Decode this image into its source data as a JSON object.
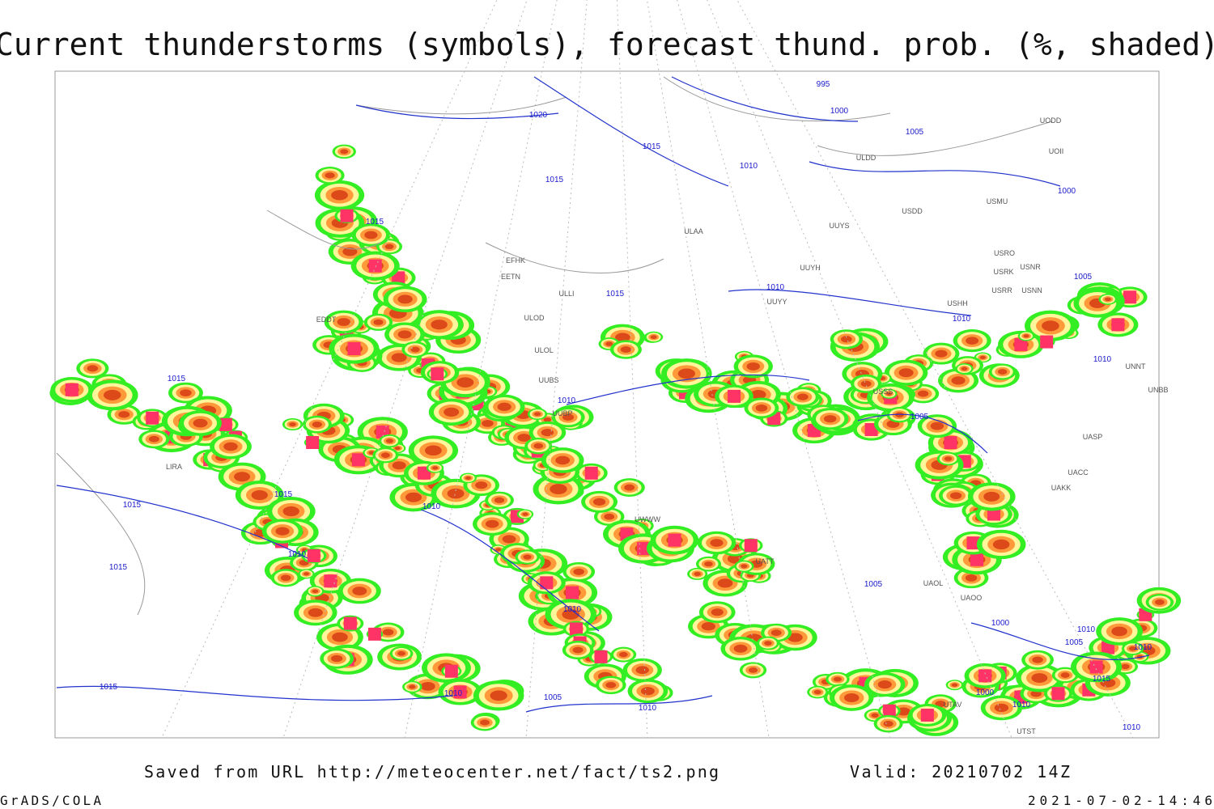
{
  "header": {
    "title": "Current thunderstorms (symbols), forecast thund. prob. (%, shaded)"
  },
  "footer": {
    "source": "Saved from URL http://meteocenter.net/fact/ts2.png",
    "valid": "Valid: 20210702 14Z",
    "software": "GrADS/COLA",
    "timestamp": "2021-07-02-14:46"
  },
  "map": {
    "isobar_labels": [
      "995",
      "1000",
      "1005",
      "1020",
      "1015",
      "1010",
      "1015",
      "1015",
      "1000",
      "1005",
      "1010",
      "1015",
      "1010",
      "1010",
      "1010",
      "1005",
      "1015",
      "1015",
      "1015",
      "1010",
      "1010",
      "1015",
      "1005",
      "1010",
      "1000",
      "1010",
      "1005",
      "1010",
      "1015",
      "1015",
      "1010",
      "1005",
      "1000",
      "1010",
      "1010",
      "1010"
    ],
    "station_labels": [
      "ULDD",
      "USDD",
      "USMU",
      "UUYS",
      "ULAA",
      "USRO",
      "USRK",
      "USNR",
      "USRR",
      "USNN",
      "UUYH",
      "UUYY",
      "USHH",
      "ULOD",
      "ULOL",
      "ULLI",
      "EFHK",
      "EETN",
      "UODD",
      "UOII",
      "UNNT",
      "UNBB",
      "USSS",
      "UASP",
      "UACC",
      "UAKK",
      "UAOO",
      "UAOL",
      "UTAV",
      "UTST",
      "UUBS",
      "UUBP",
      "EDDT",
      "LIRA",
      "UATT",
      "UWWW"
    ]
  }
}
